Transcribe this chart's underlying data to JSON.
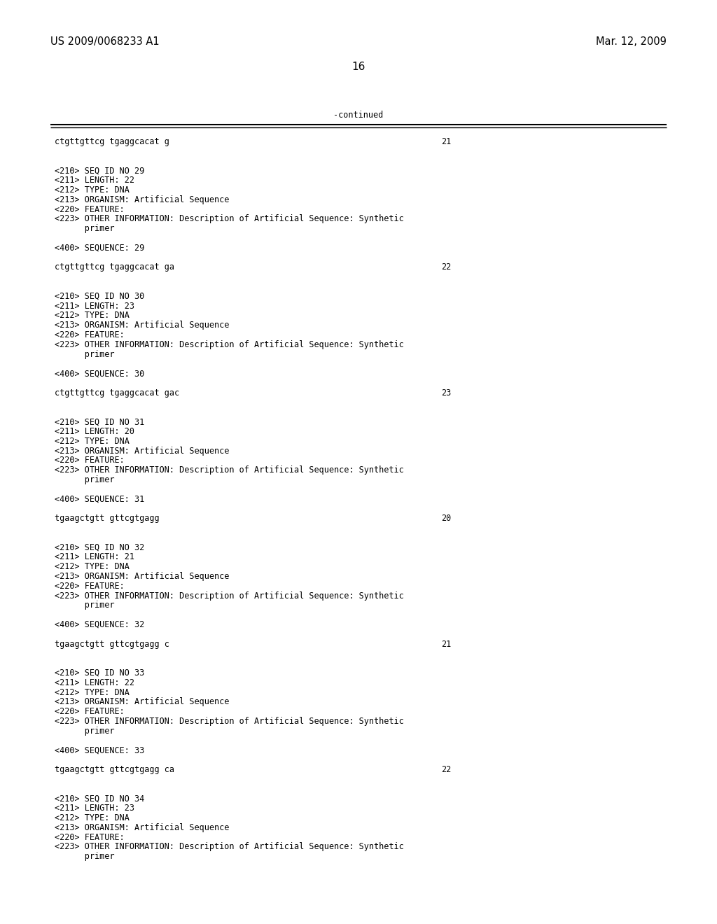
{
  "bg_color": "#ffffff",
  "header_left": "US 2009/0068233 A1",
  "header_right": "Mar. 12, 2009",
  "page_number": "16",
  "continued_label": "-continued",
  "line_color": "#000000",
  "text_color": "#000000",
  "mono_size": 8.5,
  "header_size": 10.5,
  "page_num_size": 11.0,
  "content": [
    {
      "text": "ctgttgttcg tgaggcacat g",
      "num": "21",
      "type": "seq"
    },
    {
      "type": "blank"
    },
    {
      "type": "blank"
    },
    {
      "text": "<210> SEQ ID NO 29",
      "type": "info"
    },
    {
      "text": "<211> LENGTH: 22",
      "type": "info"
    },
    {
      "text": "<212> TYPE: DNA",
      "type": "info"
    },
    {
      "text": "<213> ORGANISM: Artificial Sequence",
      "type": "info"
    },
    {
      "text": "<220> FEATURE:",
      "type": "info"
    },
    {
      "text": "<223> OTHER INFORMATION: Description of Artificial Sequence: Synthetic",
      "type": "info"
    },
    {
      "text": "      primer",
      "type": "info"
    },
    {
      "type": "blank"
    },
    {
      "text": "<400> SEQUENCE: 29",
      "type": "info"
    },
    {
      "type": "blank"
    },
    {
      "text": "ctgttgttcg tgaggcacat ga",
      "num": "22",
      "type": "seq"
    },
    {
      "type": "blank"
    },
    {
      "type": "blank"
    },
    {
      "text": "<210> SEQ ID NO 30",
      "type": "info"
    },
    {
      "text": "<211> LENGTH: 23",
      "type": "info"
    },
    {
      "text": "<212> TYPE: DNA",
      "type": "info"
    },
    {
      "text": "<213> ORGANISM: Artificial Sequence",
      "type": "info"
    },
    {
      "text": "<220> FEATURE:",
      "type": "info"
    },
    {
      "text": "<223> OTHER INFORMATION: Description of Artificial Sequence: Synthetic",
      "type": "info"
    },
    {
      "text": "      primer",
      "type": "info"
    },
    {
      "type": "blank"
    },
    {
      "text": "<400> SEQUENCE: 30",
      "type": "info"
    },
    {
      "type": "blank"
    },
    {
      "text": "ctgttgttcg tgaggcacat gac",
      "num": "23",
      "type": "seq"
    },
    {
      "type": "blank"
    },
    {
      "type": "blank"
    },
    {
      "text": "<210> SEQ ID NO 31",
      "type": "info"
    },
    {
      "text": "<211> LENGTH: 20",
      "type": "info"
    },
    {
      "text": "<212> TYPE: DNA",
      "type": "info"
    },
    {
      "text": "<213> ORGANISM: Artificial Sequence",
      "type": "info"
    },
    {
      "text": "<220> FEATURE:",
      "type": "info"
    },
    {
      "text": "<223> OTHER INFORMATION: Description of Artificial Sequence: Synthetic",
      "type": "info"
    },
    {
      "text": "      primer",
      "type": "info"
    },
    {
      "type": "blank"
    },
    {
      "text": "<400> SEQUENCE: 31",
      "type": "info"
    },
    {
      "type": "blank"
    },
    {
      "text": "tgaagctgtt gttcgtgagg",
      "num": "20",
      "type": "seq"
    },
    {
      "type": "blank"
    },
    {
      "type": "blank"
    },
    {
      "text": "<210> SEQ ID NO 32",
      "type": "info"
    },
    {
      "text": "<211> LENGTH: 21",
      "type": "info"
    },
    {
      "text": "<212> TYPE: DNA",
      "type": "info"
    },
    {
      "text": "<213> ORGANISM: Artificial Sequence",
      "type": "info"
    },
    {
      "text": "<220> FEATURE:",
      "type": "info"
    },
    {
      "text": "<223> OTHER INFORMATION: Description of Artificial Sequence: Synthetic",
      "type": "info"
    },
    {
      "text": "      primer",
      "type": "info"
    },
    {
      "type": "blank"
    },
    {
      "text": "<400> SEQUENCE: 32",
      "type": "info"
    },
    {
      "type": "blank"
    },
    {
      "text": "tgaagctgtt gttcgtgagg c",
      "num": "21",
      "type": "seq"
    },
    {
      "type": "blank"
    },
    {
      "type": "blank"
    },
    {
      "text": "<210> SEQ ID NO 33",
      "type": "info"
    },
    {
      "text": "<211> LENGTH: 22",
      "type": "info"
    },
    {
      "text": "<212> TYPE: DNA",
      "type": "info"
    },
    {
      "text": "<213> ORGANISM: Artificial Sequence",
      "type": "info"
    },
    {
      "text": "<220> FEATURE:",
      "type": "info"
    },
    {
      "text": "<223> OTHER INFORMATION: Description of Artificial Sequence: Synthetic",
      "type": "info"
    },
    {
      "text": "      primer",
      "type": "info"
    },
    {
      "type": "blank"
    },
    {
      "text": "<400> SEQUENCE: 33",
      "type": "info"
    },
    {
      "type": "blank"
    },
    {
      "text": "tgaagctgtt gttcgtgagg ca",
      "num": "22",
      "type": "seq"
    },
    {
      "type": "blank"
    },
    {
      "type": "blank"
    },
    {
      "text": "<210> SEQ ID NO 34",
      "type": "info"
    },
    {
      "text": "<211> LENGTH: 23",
      "type": "info"
    },
    {
      "text": "<212> TYPE: DNA",
      "type": "info"
    },
    {
      "text": "<213> ORGANISM: Artificial Sequence",
      "type": "info"
    },
    {
      "text": "<220> FEATURE:",
      "type": "info"
    },
    {
      "text": "<223> OTHER INFORMATION: Description of Artificial Sequence: Synthetic",
      "type": "info"
    },
    {
      "text": "      primer",
      "type": "info"
    }
  ]
}
